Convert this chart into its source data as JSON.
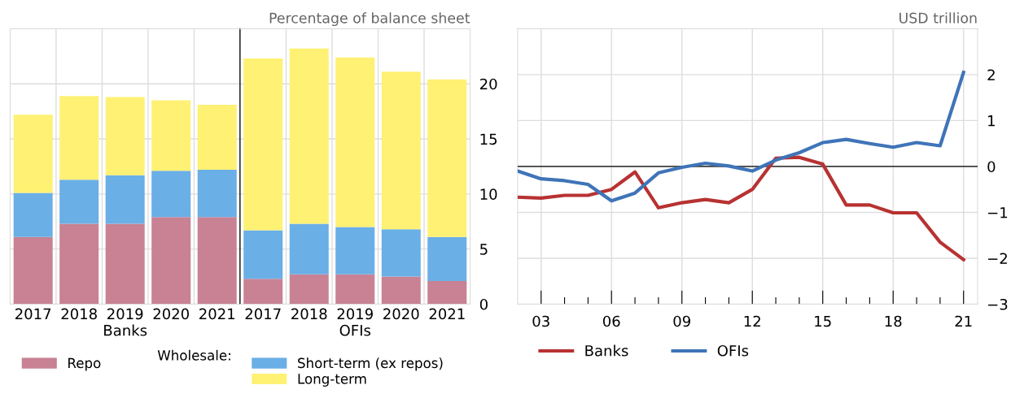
{
  "chart_data": [
    {
      "type": "bar",
      "stacked": true,
      "xlabel": "Banks",
      "categories": [
        "2017",
        "2018",
        "2019",
        "2020",
        "2021"
      ],
      "series": [
        {
          "name": "Repo",
          "color": "#c88294",
          "values": [
            6.1,
            7.3,
            7.3,
            7.9,
            7.9
          ]
        },
        {
          "name": "Short-term (ex repos)",
          "color": "#6aafe6",
          "values": [
            4.0,
            4.0,
            4.4,
            4.2,
            4.3
          ]
        },
        {
          "name": "Long-term",
          "color": "#fef174",
          "values": [
            7.1,
            7.6,
            7.1,
            6.4,
            5.9
          ]
        }
      ],
      "legend_title": "Wholesale:",
      "legend": "bottom",
      "ylim": [
        0,
        25
      ],
      "yticks": [
        0,
        5,
        10,
        15,
        20
      ],
      "grid": true,
      "tick_labels": "x"
    },
    {
      "type": "bar",
      "stacked": true,
      "xlabel": "OFIs",
      "ylabel": "Percentage of balance sheet",
      "categories": [
        "2017",
        "2018",
        "2019",
        "2020",
        "2021"
      ],
      "series": [
        {
          "color": "#c88294",
          "values": [
            2.3,
            2.7,
            2.7,
            2.5,
            2.1
          ]
        },
        {
          "color": "#6aafe6",
          "values": [
            4.4,
            4.6,
            4.3,
            4.3,
            4.0
          ]
        },
        {
          "color": "#fef174",
          "values": [
            15.6,
            15.9,
            15.4,
            14.3,
            14.3
          ]
        }
      ],
      "ylim": [
        0,
        25
      ],
      "yticks": [
        0,
        5,
        10,
        15,
        20
      ],
      "grid": true
    },
    {
      "type": "line",
      "ylabel": "USD trillion",
      "x": [
        2002,
        2003,
        2004,
        2005,
        2006,
        2007,
        2008,
        2009,
        2010,
        2011,
        2012,
        2013,
        2014,
        2015,
        2016,
        2017,
        2018,
        2019,
        2020,
        2021
      ],
      "series": [
        {
          "name": "Banks",
          "color": "#b83232",
          "values": [
            -0.67,
            -0.69,
            -0.63,
            -0.63,
            -0.5,
            -0.12,
            -0.9,
            -0.79,
            -0.72,
            -0.79,
            -0.5,
            0.18,
            0.2,
            0.05,
            -0.84,
            -0.84,
            -1.01,
            -1.01,
            -1.65,
            -2.03
          ]
        },
        {
          "name": "OFIs",
          "color": "#3f74b8",
          "values": [
            -0.1,
            -0.27,
            -0.31,
            -0.39,
            -0.75,
            -0.58,
            -0.14,
            -0.02,
            0.07,
            0.01,
            -0.1,
            0.14,
            0.3,
            0.52,
            0.59,
            0.5,
            0.42,
            0.52,
            0.45,
            2.05
          ]
        }
      ],
      "xlim": [
        2002,
        2021.6
      ],
      "ylim": [
        -3,
        3
      ],
      "xticks": [
        {
          "value": 2003,
          "label": "03"
        },
        {
          "value": 2004,
          "label": null
        },
        {
          "value": 2005,
          "label": null
        },
        {
          "value": 2006,
          "label": "06"
        },
        {
          "value": 2007,
          "label": null
        },
        {
          "value": 2008,
          "label": null
        },
        {
          "value": 2009,
          "label": "09"
        },
        {
          "value": 2010,
          "label": null
        },
        {
          "value": 2011,
          "label": null
        },
        {
          "value": 2012,
          "label": "12"
        },
        {
          "value": 2013,
          "label": null
        },
        {
          "value": 2014,
          "label": null
        },
        {
          "value": 2015,
          "label": "15"
        },
        {
          "value": 2016,
          "label": null
        },
        {
          "value": 2017,
          "label": null
        },
        {
          "value": 2018,
          "label": "18"
        },
        {
          "value": 2019,
          "label": null
        },
        {
          "value": 2020,
          "label": null
        },
        {
          "value": 2021,
          "label": "21"
        }
      ],
      "yticks": [
        {
          "value": -3,
          "label": "−3"
        },
        {
          "value": -2,
          "label": "−2"
        },
        {
          "value": -1,
          "label": "−1"
        },
        0,
        1,
        2
      ],
      "grid": true,
      "legend": "bottom left",
      "marker": "none",
      "line_style": "solid",
      "ref_lines": [
        {
          "axis": "y",
          "value": 0,
          "color": "#404040"
        }
      ]
    }
  ]
}
